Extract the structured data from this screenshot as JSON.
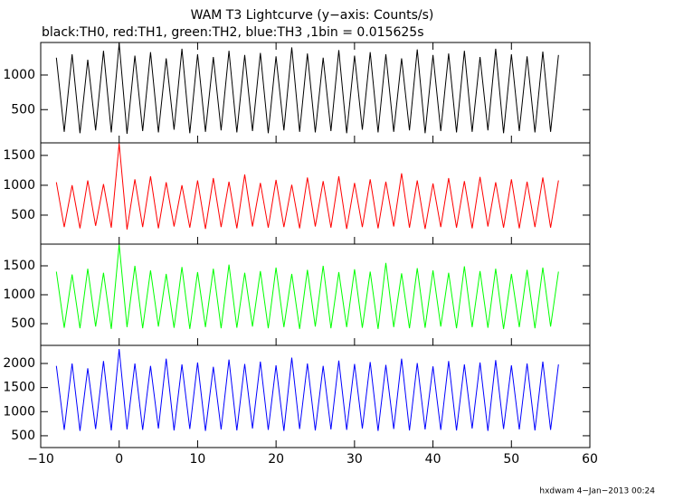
{
  "chart_data": [
    {
      "type": "line",
      "title": "WAM T3 Lightcurve (y−axis: Counts/s)",
      "subtitle": "black:TH0, red:TH1, green:TH2, blue:TH3 ,1bin = 0.015625s",
      "color": "#000000",
      "x": [
        -8,
        -7,
        -6,
        -5,
        -4,
        -3,
        -2,
        -1,
        0,
        1,
        2,
        3,
        4,
        5,
        6,
        7,
        8,
        9,
        10,
        11,
        12,
        13,
        14,
        15,
        16,
        17,
        18,
        19,
        20,
        21,
        22,
        23,
        24,
        25,
        26,
        27,
        28,
        29,
        30,
        31,
        32,
        33,
        34,
        35,
        36,
        37,
        38,
        39,
        40,
        41,
        42,
        43,
        44,
        45,
        46,
        47,
        48,
        49,
        50,
        51,
        52,
        53,
        54,
        55,
        56
      ],
      "values": [
        1250,
        180,
        1300,
        160,
        1220,
        200,
        1350,
        170,
        1460,
        150,
        1280,
        190,
        1330,
        170,
        1240,
        210,
        1380,
        160,
        1300,
        180,
        1260,
        200,
        1350,
        170,
        1290,
        190,
        1320,
        160,
        1270,
        200,
        1400,
        180,
        1310,
        170,
        1250,
        190,
        1360,
        160,
        1280,
        210,
        1330,
        170,
        1300,
        180,
        1240,
        200,
        1370,
        160,
        1290,
        190,
        1310,
        170,
        1350,
        180,
        1260,
        200,
        1380,
        160,
        1300,
        190,
        1270,
        170,
        1340,
        180,
        1290
      ],
      "ylim": [
        20,
        1470
      ],
      "yticks": [
        500,
        1000
      ]
    },
    {
      "type": "line",
      "color": "#ff0000",
      "x": [
        -8,
        -7,
        -6,
        -5,
        -4,
        -3,
        -2,
        -1,
        0,
        1,
        2,
        3,
        4,
        5,
        6,
        7,
        8,
        9,
        10,
        11,
        12,
        13,
        14,
        15,
        16,
        17,
        18,
        19,
        20,
        21,
        22,
        23,
        24,
        25,
        26,
        27,
        28,
        29,
        30,
        31,
        32,
        33,
        34,
        35,
        36,
        37,
        38,
        39,
        40,
        41,
        42,
        43,
        44,
        45,
        46,
        47,
        48,
        49,
        50,
        51,
        52,
        53,
        54,
        55,
        56
      ],
      "values": [
        1050,
        300,
        1000,
        280,
        1080,
        320,
        1020,
        290,
        1700,
        260,
        1100,
        300,
        1150,
        280,
        1050,
        310,
        1000,
        290,
        1080,
        270,
        1120,
        300,
        1060,
        280,
        1180,
        310,
        1040,
        290,
        1090,
        300,
        1010,
        280,
        1130,
        310,
        1070,
        290,
        1150,
        270,
        1040,
        300,
        1100,
        280,
        1060,
        310,
        1200,
        290,
        1080,
        270,
        1030,
        300,
        1120,
        290,
        1070,
        280,
        1140,
        310,
        1050,
        290,
        1100,
        280,
        1060,
        300,
        1130,
        290,
        1080
      ],
      "ylim": [
        15,
        1710
      ],
      "yticks": [
        500,
        1000,
        1500
      ]
    },
    {
      "type": "line",
      "color": "#00ff00",
      "x": [
        -8,
        -7,
        -6,
        -5,
        -4,
        -3,
        -2,
        -1,
        0,
        1,
        2,
        3,
        4,
        5,
        6,
        7,
        8,
        9,
        10,
        11,
        12,
        13,
        14,
        15,
        16,
        17,
        18,
        19,
        20,
        21,
        22,
        23,
        24,
        25,
        26,
        27,
        28,
        29,
        30,
        31,
        32,
        33,
        34,
        35,
        36,
        37,
        38,
        39,
        40,
        41,
        42,
        43,
        44,
        45,
        46,
        47,
        48,
        49,
        50,
        51,
        52,
        53,
        54,
        55,
        56
      ],
      "values": [
        1400,
        430,
        1350,
        420,
        1450,
        450,
        1380,
        410,
        1870,
        440,
        1500,
        420,
        1420,
        450,
        1360,
        430,
        1480,
        410,
        1390,
        440,
        1450,
        420,
        1520,
        430,
        1380,
        450,
        1410,
        420,
        1470,
        440,
        1360,
        410,
        1430,
        450,
        1500,
        420,
        1390,
        440,
        1440,
        430,
        1400,
        410,
        1550,
        440,
        1370,
        420,
        1460,
        430,
        1420,
        450,
        1380,
        420,
        1490,
        440,
        1410,
        430,
        1450,
        410,
        1360,
        440,
        1430,
        420,
        1470,
        450,
        1400
      ],
      "ylim": [
        125,
        1875
      ],
      "yticks": [
        500,
        1000,
        1500
      ]
    },
    {
      "type": "line",
      "color": "#0000ff",
      "annotation": "hxdwam  4−Jan−2013 00:24",
      "x": [
        -8,
        -7,
        -6,
        -5,
        -4,
        -3,
        -2,
        -1,
        0,
        1,
        2,
        3,
        4,
        5,
        6,
        7,
        8,
        9,
        10,
        11,
        12,
        13,
        14,
        15,
        16,
        17,
        18,
        19,
        20,
        21,
        22,
        23,
        24,
        25,
        26,
        27,
        28,
        29,
        30,
        31,
        32,
        33,
        34,
        35,
        36,
        37,
        38,
        39,
        40,
        41,
        42,
        43,
        44,
        45,
        46,
        47,
        48,
        49,
        50,
        51,
        52,
        53,
        54,
        55,
        56
      ],
      "values": [
        1950,
        620,
        2000,
        600,
        1900,
        640,
        2050,
        610,
        2300,
        630,
        2000,
        620,
        1950,
        650,
        2100,
        610,
        1980,
        640,
        2020,
        600,
        1930,
        630,
        2080,
        610,
        1990,
        650,
        2040,
        620,
        1960,
        600,
        2120,
        640,
        2000,
        610,
        1950,
        630,
        2060,
        620,
        1990,
        650,
        2030,
        600,
        1970,
        640,
        2100,
        610,
        2010,
        630,
        1940,
        620,
        2050,
        610,
        1980,
        650,
        2020,
        600,
        2070,
        640,
        1960,
        630,
        2000,
        610,
        2040,
        620,
        1980
      ],
      "ylim": [
        255,
        2375
      ],
      "yticks": [
        500,
        1000,
        1500,
        2000
      ],
      "xlim": [
        -10,
        60
      ],
      "xticks": [
        {
          "value": -10,
          "label": "−10"
        },
        0,
        10,
        20,
        30,
        40,
        50,
        60
      ]
    }
  ]
}
